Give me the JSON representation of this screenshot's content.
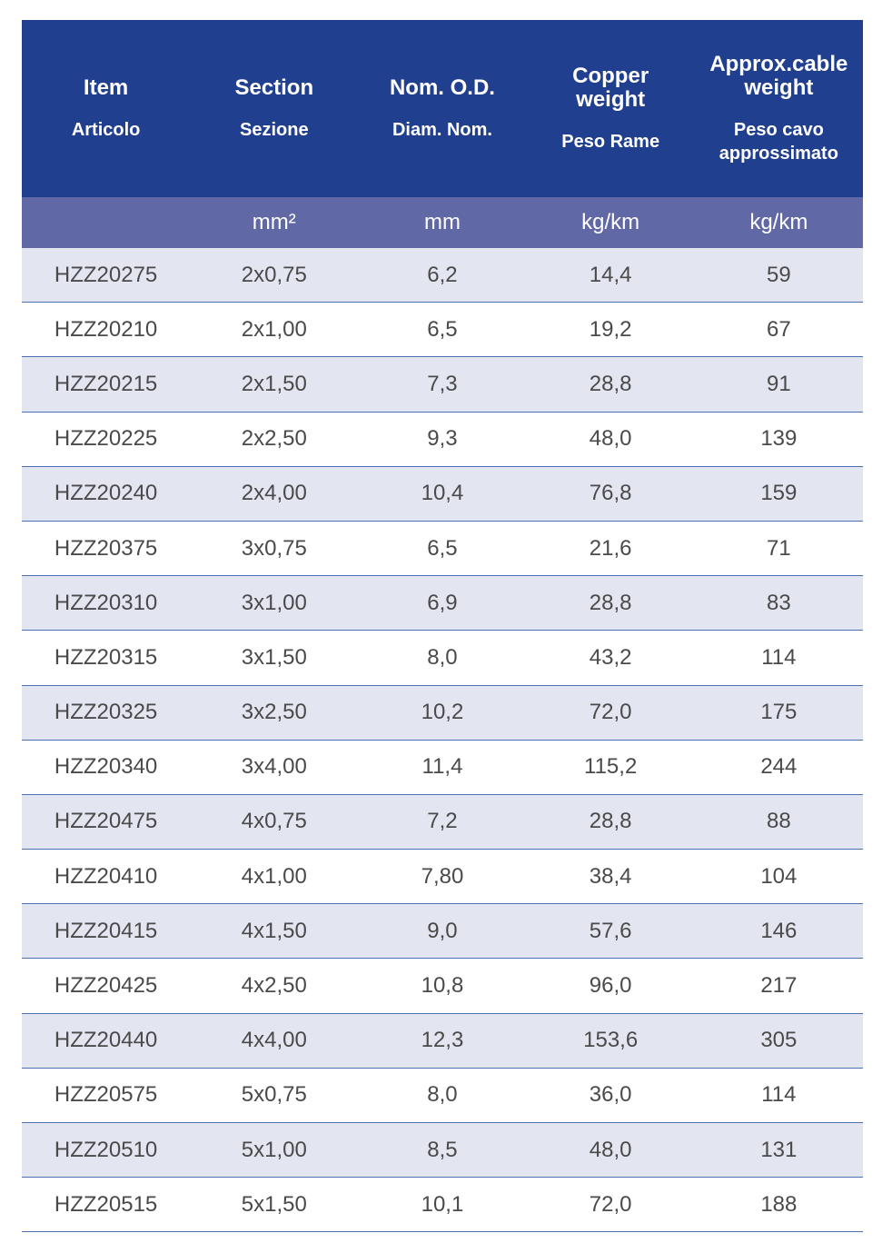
{
  "table": {
    "headers": [
      {
        "title": "Item",
        "subtitle": "Articolo"
      },
      {
        "title": "Section",
        "subtitle": "Sezione"
      },
      {
        "title": "Nom. O.D.",
        "subtitle": "Diam. Nom."
      },
      {
        "title": "Copper weight",
        "subtitle": "Peso Rame"
      },
      {
        "title": "Approx.cable weight",
        "subtitle": "Peso cavo approssimato"
      }
    ],
    "units": [
      "mm²",
      "mm",
      "kg/km",
      "kg/km"
    ],
    "rows": [
      [
        "HZZ20275",
        "2x0,75",
        "6,2",
        "14,4",
        "59"
      ],
      [
        "HZZ20210",
        "2x1,00",
        "6,5",
        "19,2",
        "67"
      ],
      [
        "HZZ20215",
        "2x1,50",
        "7,3",
        "28,8",
        "91"
      ],
      [
        "HZZ20225",
        "2x2,50",
        "9,3",
        "48,0",
        "139"
      ],
      [
        "HZZ20240",
        "2x4,00",
        "10,4",
        "76,8",
        "159"
      ],
      [
        "HZZ20375",
        "3x0,75",
        "6,5",
        "21,6",
        "71"
      ],
      [
        "HZZ20310",
        "3x1,00",
        "6,9",
        "28,8",
        "83"
      ],
      [
        "HZZ20315",
        "3x1,50",
        "8,0",
        "43,2",
        "114"
      ],
      [
        "HZZ20325",
        "3x2,50",
        "10,2",
        "72,0",
        "175"
      ],
      [
        "HZZ20340",
        "3x4,00",
        "11,4",
        "115,2",
        "244"
      ],
      [
        "HZZ20475",
        "4x0,75",
        "7,2",
        "28,8",
        "88"
      ],
      [
        "HZZ20410",
        "4x1,00",
        "7,80",
        "38,4",
        "104"
      ],
      [
        "HZZ20415",
        "4x1,50",
        "9,0",
        "57,6",
        "146"
      ],
      [
        "HZZ20425",
        "4x2,50",
        "10,8",
        "96,0",
        "217"
      ],
      [
        "HZZ20440",
        "4x4,00",
        "12,3",
        "153,6",
        "305"
      ],
      [
        "HZZ20575",
        "5x0,75",
        "8,0",
        "36,0",
        "114"
      ],
      [
        "HZZ20510",
        "5x1,00",
        "8,5",
        "48,0",
        "131"
      ],
      [
        "HZZ20515",
        "5x1,50",
        "10,1",
        "72,0",
        "188"
      ]
    ]
  }
}
